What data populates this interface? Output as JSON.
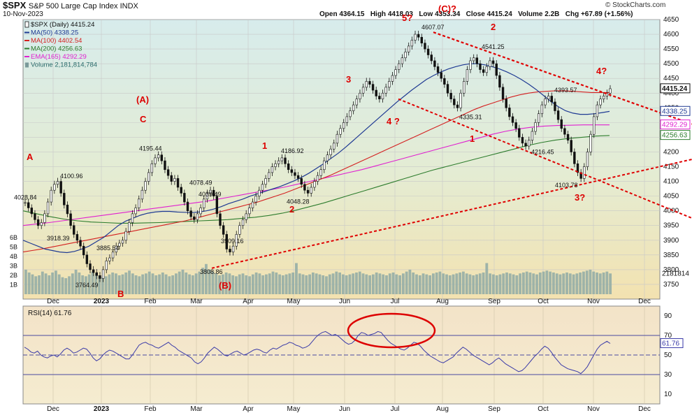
{
  "header": {
    "ticker": "$SPX",
    "description": "S&P 500 Large Cap Index",
    "exchange": "INDX",
    "date": "10-Nov-2023",
    "ohlc": {
      "open": "Open 4364.15",
      "high": "High 4418.03",
      "low": "Low 4353.34",
      "close": "Close 4415.24",
      "volume": "Volume 2.2B",
      "change": "Chg +67.89 (+1.56%)"
    },
    "credit": "© StockCharts.com"
  },
  "legend": [
    {
      "label": "$SPX (Daily) 4415.24",
      "color": "#111111",
      "icon": "candle-icon"
    },
    {
      "label": "MA(50) 4338.25",
      "color": "#1f3a93",
      "icon": "line-icon"
    },
    {
      "label": "MA(100) 4402.54",
      "color": "#d42020",
      "icon": "line-icon"
    },
    {
      "label": "MA(200) 4256.63",
      "color": "#2e7d2e",
      "icon": "line-icon"
    },
    {
      "label": "EMA(165) 4292.29",
      "color": "#e020d0",
      "icon": "line-icon"
    },
    {
      "label": "Volume 2,181,814,784",
      "color": "#7a9a9a",
      "icon": "volume-icon"
    }
  ],
  "price_axis_labels": {
    "last_close": "4415.24",
    "ma50": "4338.25",
    "ema165": "4292.29",
    "ma200": "4256.63",
    "volume": "2181814"
  },
  "rsi": {
    "label": "RSI(14) 61.76",
    "last": "61.76",
    "color": "#3a3aa8",
    "ylim": [
      0,
      100
    ],
    "ticks": [
      10,
      30,
      50,
      70,
      90
    ],
    "overbought": 70,
    "oversold": 30,
    "series": [
      58,
      56,
      53,
      52,
      54,
      50,
      48,
      47,
      49,
      50,
      48,
      51,
      55,
      57,
      55,
      52,
      53,
      55,
      57,
      56,
      52,
      47,
      44,
      46,
      50,
      53,
      55,
      54,
      52,
      50,
      48,
      46,
      46,
      50,
      55,
      60,
      62,
      63,
      61,
      60,
      58,
      57,
      59,
      61,
      63,
      60,
      58,
      55,
      53,
      51,
      49,
      47,
      43,
      41,
      43,
      47,
      52,
      55,
      58,
      56,
      53,
      50,
      49,
      51,
      53,
      54,
      52,
      50,
      51,
      53,
      55,
      56,
      55,
      53,
      52,
      55,
      57,
      56,
      58,
      60,
      61,
      63,
      62,
      60,
      59,
      57,
      58,
      60,
      64,
      68,
      71,
      73,
      74,
      72,
      70,
      71,
      69,
      66,
      63,
      61,
      62,
      65,
      70,
      73,
      72,
      70,
      71,
      72,
      74,
      73,
      69,
      65,
      62,
      60,
      58,
      56,
      55,
      57,
      60,
      63,
      62,
      59,
      55,
      52,
      49,
      47,
      45,
      43,
      42,
      44,
      46,
      48,
      52,
      55,
      58,
      56,
      53,
      50,
      48,
      46,
      44,
      42,
      40,
      42,
      45,
      47,
      44,
      41,
      39,
      37,
      35,
      33,
      34,
      37,
      41,
      45,
      49,
      52,
      56,
      59,
      57,
      53,
      48,
      44,
      40,
      38,
      36,
      35,
      34,
      33,
      31,
      34,
      38,
      44,
      50,
      56,
      60,
      62,
      64,
      61.76
    ]
  },
  "x_axis": [
    "Dec",
    "2023",
    "Feb",
    "Mar",
    "Apr",
    "May",
    "Jun",
    "Jul",
    "Aug",
    "Sep",
    "Oct",
    "Nov",
    "Dec"
  ],
  "chart_data": {
    "type": "line",
    "title": "S&P 500 Large Cap Index",
    "ylim": [
      3700,
      4650
    ],
    "y_ticks": [
      3750,
      3800,
      3850,
      3900,
      3950,
      4000,
      4050,
      4100,
      4150,
      4200,
      4250,
      4300,
      4350,
      4400,
      4450,
      4500,
      4550,
      4600,
      4650
    ],
    "volume_ticks": [
      "1B",
      "2B",
      "3B",
      "4B",
      "5B",
      "6B"
    ],
    "grid": true,
    "legend_position": "top-left",
    "series": [
      {
        "name": "$SPX (Daily)",
        "color": "#111111",
        "values": [
          4028,
          4010,
          3990,
          3970,
          3950,
          3960,
          3990,
          4030,
          4070,
          4090,
          4100,
          4060,
          4020,
          3990,
          3950,
          3920,
          3900,
          3880,
          3850,
          3820,
          3800,
          3790,
          3780,
          3770,
          3800,
          3830,
          3840,
          3860,
          3880,
          3890,
          3900,
          3930,
          3960,
          3990,
          4010,
          4040,
          4070,
          4100,
          4130,
          4160,
          4180,
          4190,
          4170,
          4140,
          4120,
          4100,
          4110,
          4080,
          4060,
          4030,
          4000,
          3980,
          3970,
          3990,
          4010,
          4040,
          4060,
          4070,
          4050,
          3990,
          3950,
          3920,
          3870,
          3860,
          3880,
          3920,
          3950,
          3970,
          3990,
          4010,
          4030,
          4050,
          4070,
          4090,
          4110,
          4130,
          4150,
          4160,
          4170,
          4180,
          4160,
          4140,
          4130,
          4120,
          4110,
          4090,
          4070,
          4060,
          4080,
          4100,
          4120,
          4140,
          4170,
          4190,
          4210,
          4230,
          4260,
          4280,
          4300,
          4320,
          4340,
          4360,
          4380,
          4400,
          4420,
          4440,
          4430,
          4410,
          4390,
          4380,
          4400,
          4420,
          4440,
          4460,
          4480,
          4500,
          4520,
          4540,
          4560,
          4580,
          4600,
          4590,
          4570,
          4550,
          4530,
          4510,
          4490,
          4470,
          4450,
          4430,
          4400,
          4380,
          4360,
          4350,
          4400,
          4440,
          4480,
          4510,
          4520,
          4500,
          4480,
          4470,
          4490,
          4510,
          4500,
          4460,
          4420,
          4380,
          4350,
          4320,
          4300,
          4280,
          4250,
          4230,
          4220,
          4240,
          4270,
          4300,
          4330,
          4360,
          4380,
          4390,
          4370,
          4340,
          4310,
          4280,
          4260,
          4240,
          4200,
          4160,
          4130,
          4110,
          4150,
          4200,
          4260,
          4320,
          4360,
          4380,
          4390,
          4400,
          4415
        ]
      },
      {
        "name": "MA(50)",
        "color": "#1f3a93",
        "values": [
          3900,
          3890,
          3880,
          3870,
          3865,
          3860,
          3858,
          3862,
          3870,
          3880,
          3895,
          3910,
          3930,
          3950,
          3965,
          3975,
          3985,
          3992,
          3996,
          3998,
          3998,
          3996,
          3995,
          3994,
          3996,
          4000,
          4006,
          4014,
          4024,
          4032,
          4040,
          4050,
          4058,
          4066,
          4074,
          4082,
          4092,
          4102,
          4114,
          4128,
          4144,
          4160,
          4178,
          4196,
          4216,
          4238,
          4260,
          4282,
          4304,
          4326,
          4348,
          4370,
          4390,
          4410,
          4428,
          4446,
          4460,
          4472,
          4482,
          4490,
          4496,
          4500,
          4500,
          4496,
          4490,
          4482,
          4472,
          4460,
          4446,
          4430,
          4412,
          4392,
          4372,
          4354,
          4340,
          4332,
          4328,
          4328,
          4330,
          4334,
          4338
        ]
      },
      {
        "name": "MA(100)",
        "color": "#d42020",
        "values": [
          3860,
          3865,
          3870,
          3876,
          3882,
          3888,
          3894,
          3900,
          3906,
          3912,
          3918,
          3924,
          3930,
          3936,
          3942,
          3948,
          3954,
          3960,
          3966,
          3974,
          3982,
          3990,
          3998,
          4006,
          4014,
          4022,
          4030,
          4040,
          4050,
          4060,
          4072,
          4084,
          4096,
          4108,
          4120,
          4134,
          4148,
          4162,
          4176,
          4190,
          4204,
          4218,
          4232,
          4246,
          4260,
          4274,
          4288,
          4302,
          4316,
          4330,
          4344,
          4356,
          4366,
          4376,
          4386,
          4394,
          4400,
          4404,
          4406,
          4408,
          4408,
          4406,
          4404,
          4402,
          4402,
          4402
        ]
      },
      {
        "name": "MA(200)",
        "color": "#2e7d2e",
        "values": [
          4000,
          3990,
          3980,
          3972,
          3966,
          3962,
          3960,
          3958,
          3958,
          3959,
          3960,
          3962,
          3964,
          3966,
          3968,
          3970,
          3974,
          3978,
          3984,
          3992,
          4002,
          4014,
          4026,
          4040,
          4054,
          4068,
          4082,
          4096,
          4110,
          4124,
          4138,
          4150,
          4162,
          4174,
          4186,
          4198,
          4210,
          4222,
          4232,
          4240,
          4246,
          4250,
          4254,
          4256
        ]
      },
      {
        "name": "EMA(165)",
        "color": "#e020d0",
        "values": [
          3950,
          3955,
          3960,
          3966,
          3972,
          3978,
          3984,
          3990,
          3996,
          4002,
          4008,
          4014,
          4020,
          4026,
          4032,
          4040,
          4048,
          4056,
          4064,
          4072,
          4080,
          4090,
          4100,
          4110,
          4120,
          4130,
          4140,
          4152,
          4164,
          4176,
          4188,
          4200,
          4212,
          4224,
          4236,
          4248,
          4260,
          4270,
          4278,
          4284,
          4288,
          4290,
          4291,
          4292,
          4292,
          4292
        ]
      }
    ],
    "volume_billions": [
      2.6,
      2.3,
      2.1,
      1.9,
      2.0,
      2.4,
      2.2,
      2.0,
      2.3,
      2.5,
      2.1,
      1.8,
      1.7,
      1.9,
      2.2,
      2.6,
      2.3,
      2.0,
      1.9,
      2.1,
      2.4,
      2.2,
      2.0,
      1.8,
      1.9,
      2.1,
      2.3,
      2.2,
      2.0,
      2.1,
      2.3,
      2.5,
      2.2,
      2.0,
      1.9,
      2.1,
      2.2,
      2.4,
      2.2,
      2.0,
      2.1,
      2.3,
      2.1,
      1.9,
      2.0,
      2.2,
      2.4,
      2.6,
      2.3,
      2.1,
      2.0,
      2.2,
      2.4,
      2.8,
      3.2,
      2.6,
      2.4,
      2.2,
      2.0,
      2.1,
      2.3,
      2.2,
      2.0,
      1.9,
      2.1,
      2.2,
      2.0,
      1.9,
      2.1,
      2.3,
      2.2,
      2.0,
      2.1,
      2.2,
      2.4,
      2.3,
      2.1,
      2.0,
      2.1,
      2.2,
      2.3,
      3.3,
      2.2,
      2.1,
      2.0,
      2.1,
      2.3,
      2.2,
      2.1,
      2.0,
      1.9,
      2.1,
      2.2,
      2.4,
      2.3,
      2.1,
      2.0,
      2.1,
      2.2,
      2.3,
      2.4,
      2.2,
      2.1,
      2.0,
      2.1,
      2.3,
      2.2,
      2.1,
      2.0,
      2.2,
      2.3,
      2.1,
      2.0,
      2.2,
      2.4,
      2.6,
      2.3,
      2.1,
      2.0,
      2.2,
      2.1,
      2.0,
      2.2,
      2.3,
      2.4,
      2.2,
      2.1,
      2.0,
      2.1,
      2.2,
      2.3,
      2.4,
      2.2,
      2.1,
      2.0,
      2.1,
      2.2,
      2.3,
      3.3,
      2.2,
      2.1,
      2.0,
      2.1,
      2.2,
      2.3,
      2.2,
      2.1,
      2.0,
      2.2,
      2.3,
      2.4,
      2.3,
      2.2,
      2.1,
      2.3,
      2.4,
      2.5,
      2.4,
      2.3,
      2.2,
      2.1,
      2.2,
      2.3,
      2.2,
      2.1,
      2.2,
      2.3,
      2.4,
      2.5,
      2.6,
      2.4,
      2.3,
      2.2,
      2.3,
      2.4,
      2.2
    ],
    "price_labels": [
      {
        "value": 4028.84,
        "text": "4028.84"
      },
      {
        "value": 4100.96,
        "text": "4100.96"
      },
      {
        "value": 3918.39,
        "text": "3918.39"
      },
      {
        "value": 3764.49,
        "text": "3764.49"
      },
      {
        "value": 3885.54,
        "text": "3885.54"
      },
      {
        "value": 4195.44,
        "text": "4195.44"
      },
      {
        "value": 4078.49,
        "text": "4078.49"
      },
      {
        "value": 4039.49,
        "text": "4039.49"
      },
      {
        "value": 3909.16,
        "text": "3909.16"
      },
      {
        "value": 3808.86,
        "text": "3808.86"
      },
      {
        "value": 4186.92,
        "text": "4186.92"
      },
      {
        "value": 4048.28,
        "text": "4048.28"
      },
      {
        "value": 4607.07,
        "text": "4607.07"
      },
      {
        "value": 4541.25,
        "text": "4541.25"
      },
      {
        "value": 4335.31,
        "text": "4335.31"
      },
      {
        "value": 4393.57,
        "text": "4393.57"
      },
      {
        "value": 4216.45,
        "text": "4216.45"
      },
      {
        "value": 4103.78,
        "text": "4103.78"
      }
    ],
    "wave_labels": [
      "A",
      "B",
      "(A)",
      "C",
      "(B)",
      "1",
      "2",
      "3",
      "4 ?",
      "5?",
      "(C)?",
      "1",
      "2",
      "3?",
      "4?"
    ]
  }
}
